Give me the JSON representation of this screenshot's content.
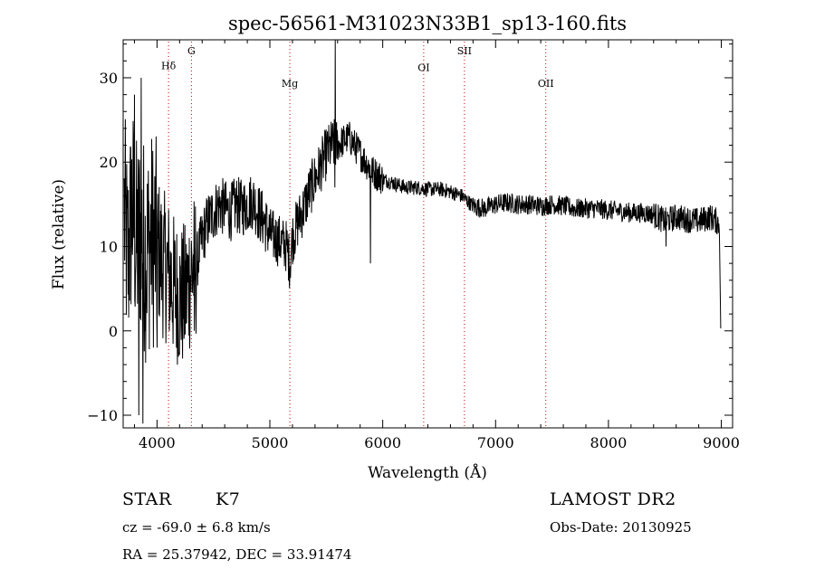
{
  "chart_data": {
    "type": "line",
    "title": "spec-56561-M31023N33B1_sp13-160.fits",
    "xlabel": "Wavelength (Å)",
    "ylabel": "Flux (relative)",
    "xlim": [
      3700,
      9100
    ],
    "ylim": [
      -11.5,
      34.5
    ],
    "xticks": [
      4000,
      5000,
      6000,
      7000,
      8000,
      9000
    ],
    "yticks": [
      -10,
      0,
      10,
      20,
      30
    ],
    "grid": false,
    "spectral_lines": [
      {
        "name": "Hδ",
        "wavelength": 4102,
        "label_y": 31
      },
      {
        "name": "G",
        "wavelength": 4305,
        "label_y": 32.8
      },
      {
        "name": "Mg",
        "wavelength": 5177,
        "label_y": 28.9
      },
      {
        "name": "OI",
        "wavelength": 6363,
        "label_y": 30.8
      },
      {
        "name": "SII",
        "wavelength": 6724,
        "label_y": 32.8
      },
      {
        "name": "OII",
        "wavelength": 7445,
        "label_y": 28.9
      }
    ],
    "anchors": [
      [
        3710,
        14
      ],
      [
        3740,
        8
      ],
      [
        3780,
        15
      ],
      [
        3820,
        10
      ],
      [
        3860,
        12
      ],
      [
        3900,
        9
      ],
      [
        3950,
        11
      ],
      [
        4000,
        10
      ],
      [
        4050,
        8
      ],
      [
        4100,
        7
      ],
      [
        4150,
        5
      ],
      [
        4200,
        4
      ],
      [
        4250,
        4
      ],
      [
        4300,
        7
      ],
      [
        4350,
        8
      ],
      [
        4400,
        11
      ],
      [
        4450,
        13
      ],
      [
        4500,
        14
      ],
      [
        4550,
        15
      ],
      [
        4600,
        14.5
      ],
      [
        4650,
        14
      ],
      [
        4700,
        15
      ],
      [
        4750,
        14.5
      ],
      [
        4800,
        15
      ],
      [
        4850,
        15.5
      ],
      [
        4900,
        14
      ],
      [
        4950,
        13
      ],
      [
        5000,
        11.5
      ],
      [
        5050,
        11
      ],
      [
        5100,
        10.5
      ],
      [
        5150,
        10
      ],
      [
        5177,
        8
      ],
      [
        5200,
        11
      ],
      [
        5250,
        13
      ],
      [
        5300,
        14.5
      ],
      [
        5350,
        16.5
      ],
      [
        5400,
        18
      ],
      [
        5450,
        19.5
      ],
      [
        5500,
        21
      ],
      [
        5550,
        22
      ],
      [
        5600,
        22
      ],
      [
        5650,
        22.5
      ],
      [
        5700,
        23
      ],
      [
        5750,
        22
      ],
      [
        5800,
        21
      ],
      [
        5850,
        20
      ],
      [
        5900,
        19
      ],
      [
        5950,
        18.5
      ],
      [
        6000,
        18
      ],
      [
        6100,
        17.5
      ],
      [
        6200,
        17
      ],
      [
        6300,
        17
      ],
      [
        6400,
        16.8
      ],
      [
        6500,
        16.8
      ],
      [
        6600,
        16.5
      ],
      [
        6700,
        16
      ],
      [
        6800,
        14.8
      ],
      [
        6900,
        14.5
      ],
      [
        7000,
        15
      ],
      [
        7100,
        15.2
      ],
      [
        7200,
        15
      ],
      [
        7300,
        15
      ],
      [
        7400,
        14.8
      ],
      [
        7500,
        15
      ],
      [
        7600,
        14.8
      ],
      [
        7700,
        14.5
      ],
      [
        7800,
        14.5
      ],
      [
        7900,
        14.5
      ],
      [
        8000,
        14.3
      ],
      [
        8100,
        14.2
      ],
      [
        8200,
        14
      ],
      [
        8300,
        14
      ],
      [
        8400,
        13.8
      ],
      [
        8500,
        13
      ],
      [
        8600,
        13.5
      ],
      [
        8700,
        13.2
      ],
      [
        8800,
        13
      ],
      [
        8900,
        13.5
      ],
      [
        8960,
        13
      ],
      [
        8985,
        12.5
      ]
    ],
    "features": [
      {
        "x": 3800,
        "y": 28
      },
      {
        "x": 3840,
        "y": -10
      },
      {
        "x": 3860,
        "y": 30
      },
      {
        "x": 3875,
        "y": -11
      },
      {
        "x": 4000,
        "y": -2
      },
      {
        "x": 4180,
        "y": -4
      },
      {
        "x": 4330,
        "y": 0
      },
      {
        "x": 5580,
        "y": 34.5
      },
      {
        "x": 5575,
        "y": 17
      },
      {
        "x": 5890,
        "y": 8
      },
      {
        "x": 8510,
        "y": 10
      }
    ],
    "end_drop": {
      "x": 8995,
      "y": 0.3
    }
  },
  "footer": {
    "object_class": "STAR",
    "subclass": "K7",
    "survey": "LAMOST DR2",
    "redshift": "cz = -69.0 ± 6.8 km/s",
    "obs_date": "Obs-Date: 20130925",
    "coords": "RA =  25.37942, DEC =  33.91474"
  }
}
